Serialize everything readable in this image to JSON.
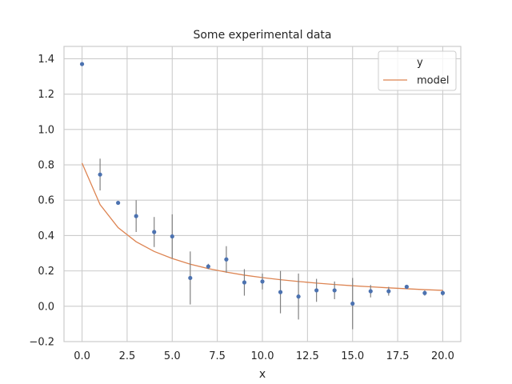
{
  "chart_data": {
    "type": "scatter",
    "title": "Some experimental data",
    "xlabel": "x",
    "ylabel": "",
    "xlim": [
      -1.0,
      21.0
    ],
    "ylim": [
      -0.2,
      1.47
    ],
    "xticks": [
      0.0,
      2.5,
      5.0,
      7.5,
      10.0,
      12.5,
      15.0,
      17.5,
      20.0
    ],
    "xtick_labels": [
      "0.0",
      "2.5",
      "5.0",
      "7.5",
      "10.0",
      "12.5",
      "15.0",
      "17.5",
      "20.0"
    ],
    "yticks": [
      -0.2,
      0.0,
      0.2,
      0.4,
      0.6,
      0.8,
      1.0,
      1.2,
      1.4
    ],
    "ytick_labels": [
      "−0.2",
      "0.0",
      "0.2",
      "0.4",
      "0.6",
      "0.8",
      "1.0",
      "1.2",
      "1.4"
    ],
    "grid": true,
    "legend": {
      "placement": "top-right",
      "entries": [
        "y",
        "model"
      ]
    },
    "series": [
      {
        "name": "y",
        "kind": "errorbar",
        "color": "#4c72b0",
        "errcolor": "#808080",
        "x": [
          0,
          1,
          2,
          3,
          4,
          5,
          6,
          7,
          8,
          9,
          10,
          11,
          12,
          13,
          14,
          15,
          16,
          17,
          18,
          19,
          20
        ],
        "y": [
          1.37,
          0.745,
          0.585,
          0.51,
          0.42,
          0.395,
          0.16,
          0.225,
          0.265,
          0.135,
          0.14,
          0.08,
          0.055,
          0.09,
          0.09,
          0.015,
          0.085,
          0.085,
          0.11,
          0.075,
          0.075
        ],
        "err": [
          0.01,
          0.09,
          0.01,
          0.09,
          0.085,
          0.125,
          0.15,
          0.015,
          0.075,
          0.075,
          0.045,
          0.12,
          0.13,
          0.065,
          0.05,
          0.145,
          0.035,
          0.025,
          0.01,
          0.015,
          0.015
        ]
      },
      {
        "name": "model",
        "kind": "line",
        "color": "#dd8452",
        "x": [
          0,
          1,
          2,
          3,
          4,
          5,
          6,
          7,
          8,
          9,
          10,
          11,
          12,
          13,
          14,
          15,
          16,
          17,
          18,
          19,
          20
        ],
        "y": [
          0.81,
          0.575,
          0.445,
          0.365,
          0.31,
          0.27,
          0.238,
          0.213,
          0.193,
          0.176,
          0.162,
          0.15,
          0.14,
          0.131,
          0.123,
          0.116,
          0.11,
          0.104,
          0.099,
          0.094,
          0.09
        ]
      }
    ]
  }
}
